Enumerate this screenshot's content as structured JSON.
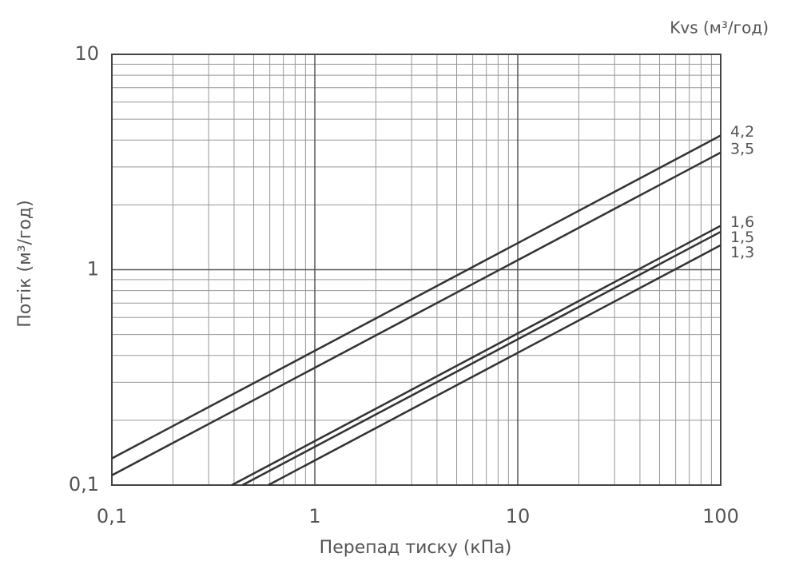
{
  "chart_data": {
    "type": "line",
    "legend_title": "Kvs (м³/год)",
    "x_label": "Перепад тиску (кПа)",
    "y_label": "Потік (м³/год)",
    "xscale": "log",
    "yscale": "log",
    "xlim": [
      0.1,
      100
    ],
    "ylim": [
      0.1,
      10
    ],
    "xticks": [
      {
        "value": 0.1,
        "label": "0,1"
      },
      1,
      10,
      100
    ],
    "yticks": [
      {
        "value": 0.1,
        "label": "0,1"
      },
      1,
      10
    ],
    "grid": true,
    "minor_grid": true,
    "legend": "right",
    "series": [
      {
        "name": "4,2",
        "color": "#333333",
        "x": [
          0.1,
          100
        ],
        "values": [
          0.133,
          4.2
        ]
      },
      {
        "name": "3,5",
        "color": "#333333",
        "x": [
          0.1,
          100
        ],
        "values": [
          0.111,
          3.5
        ]
      },
      {
        "name": "1,6",
        "color": "#333333",
        "x": [
          0.39,
          100
        ],
        "values": [
          0.1,
          1.6
        ]
      },
      {
        "name": "1,5",
        "color": "#333333",
        "x": [
          0.44,
          100
        ],
        "values": [
          0.1,
          1.5
        ]
      },
      {
        "name": "1,3",
        "color": "#333333",
        "x": [
          0.59,
          100
        ],
        "values": [
          0.1,
          1.3
        ]
      }
    ]
  }
}
